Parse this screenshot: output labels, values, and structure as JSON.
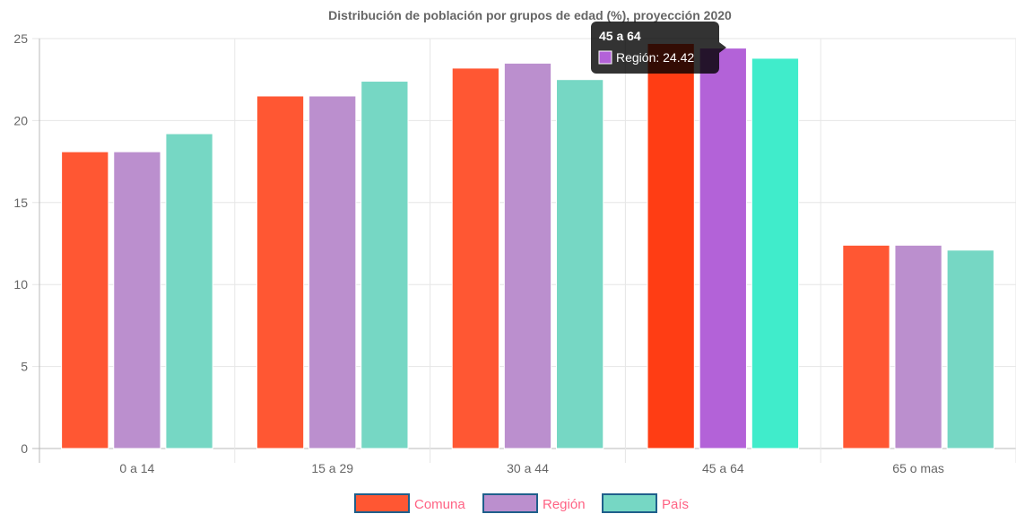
{
  "chart_data": {
    "type": "bar",
    "title": "Distribución de población por grupos de edad (%), proyección 2020",
    "categories": [
      "0 a 14",
      "15 a 29",
      "30 a 44",
      "45 a 64",
      "65 o mas"
    ],
    "series": [
      {
        "name": "Comuna",
        "values": [
          18.1,
          21.5,
          23.2,
          24.7,
          12.4
        ],
        "color": "#ff5733",
        "highlight_color": "#ff3d14"
      },
      {
        "name": "Región",
        "values": [
          18.1,
          21.5,
          23.5,
          24.42,
          12.4
        ],
        "color": "#bb8fce",
        "highlight_color": "#b362d8"
      },
      {
        "name": "País",
        "values": [
          19.2,
          22.4,
          22.5,
          23.8,
          12.1
        ],
        "color": "#76d7c4",
        "highlight_color": "#40eccb"
      }
    ],
    "yticks": [
      "0",
      "5",
      "10",
      "15",
      "20",
      "25"
    ],
    "ylim": [
      0,
      25
    ],
    "grid": true,
    "legend_position": "bottom",
    "highlighted_category": "45 a 64",
    "tooltip": {
      "title": "45 a 64",
      "label": "Región: 24.42",
      "series": "Región"
    }
  }
}
